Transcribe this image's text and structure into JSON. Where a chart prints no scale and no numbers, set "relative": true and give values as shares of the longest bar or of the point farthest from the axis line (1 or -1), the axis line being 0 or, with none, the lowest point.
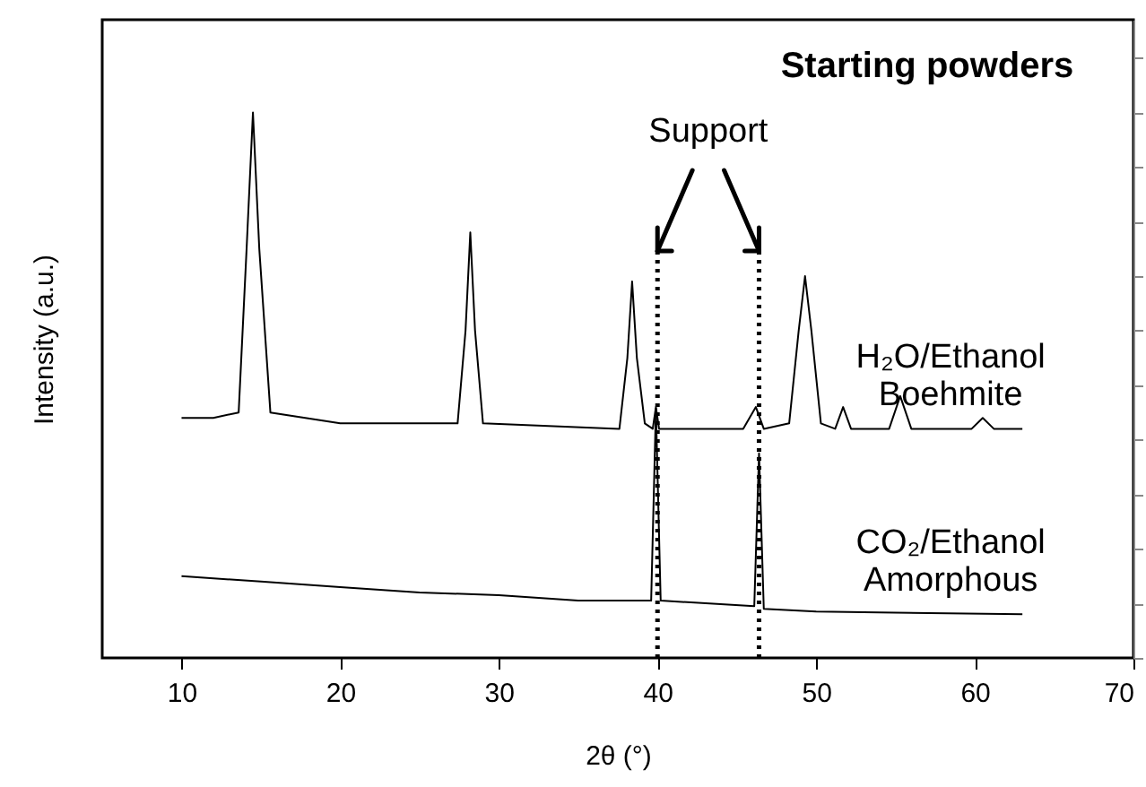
{
  "chart_data": {
    "type": "line",
    "title": "Starting powders",
    "xlabel": "2θ (°)",
    "ylabel": "Intensity (a.u.)",
    "relative": true,
    "xlim": [
      5,
      70
    ],
    "xticks": [
      10,
      20,
      30,
      40,
      50,
      60,
      70
    ],
    "grid": false,
    "line_style": "solid",
    "marker": "none",
    "series": [
      {
        "name": "H₂O/Ethanol\nBoehmite",
        "color": "#000000",
        "x": [
          10,
          12,
          13.6,
          14.1,
          14.5,
          14.9,
          15.6,
          20,
          27.4,
          27.9,
          28.2,
          28.5,
          29,
          37.6,
          38.1,
          38.4,
          38.7,
          39.2,
          39.7,
          39.9,
          40.1,
          40.5,
          45.4,
          46.2,
          46.7,
          48.3,
          48.9,
          49.3,
          49.7,
          50.3,
          51.2,
          51.7,
          52.2,
          54.6,
          55.3,
          56,
          59.8,
          60.5,
          61.2,
          63
        ],
        "values": [
          0.44,
          0.44,
          0.45,
          0.75,
          1.0,
          0.75,
          0.45,
          0.43,
          0.43,
          0.6,
          0.78,
          0.6,
          0.43,
          0.42,
          0.55,
          0.69,
          0.55,
          0.43,
          0.42,
          0.46,
          0.42,
          0.42,
          0.42,
          0.46,
          0.42,
          0.43,
          0.6,
          0.7,
          0.6,
          0.43,
          0.42,
          0.46,
          0.42,
          0.42,
          0.48,
          0.42,
          0.42,
          0.44,
          0.42,
          0.42
        ]
      },
      {
        "name": "CO₂/Ethanol\nAmorphous",
        "color": "#000000",
        "x": [
          10,
          15,
          20,
          25,
          30,
          35,
          39.6,
          39.9,
          40.2,
          46.1,
          46.4,
          46.7,
          50,
          55,
          63
        ],
        "values": [
          0.15,
          0.14,
          0.13,
          0.12,
          0.115,
          0.105,
          0.105,
          0.457,
          0.105,
          0.095,
          0.375,
          0.09,
          0.085,
          0.083,
          0.08
        ]
      }
    ],
    "ref_lines": [
      {
        "axis": "x",
        "value": 40.0,
        "color": "#000000",
        "line_style": "dotted"
      },
      {
        "axis": "x",
        "value": 46.4,
        "color": "#000000",
        "line_style": "dotted"
      }
    ],
    "annotations": [
      "Support"
    ]
  }
}
